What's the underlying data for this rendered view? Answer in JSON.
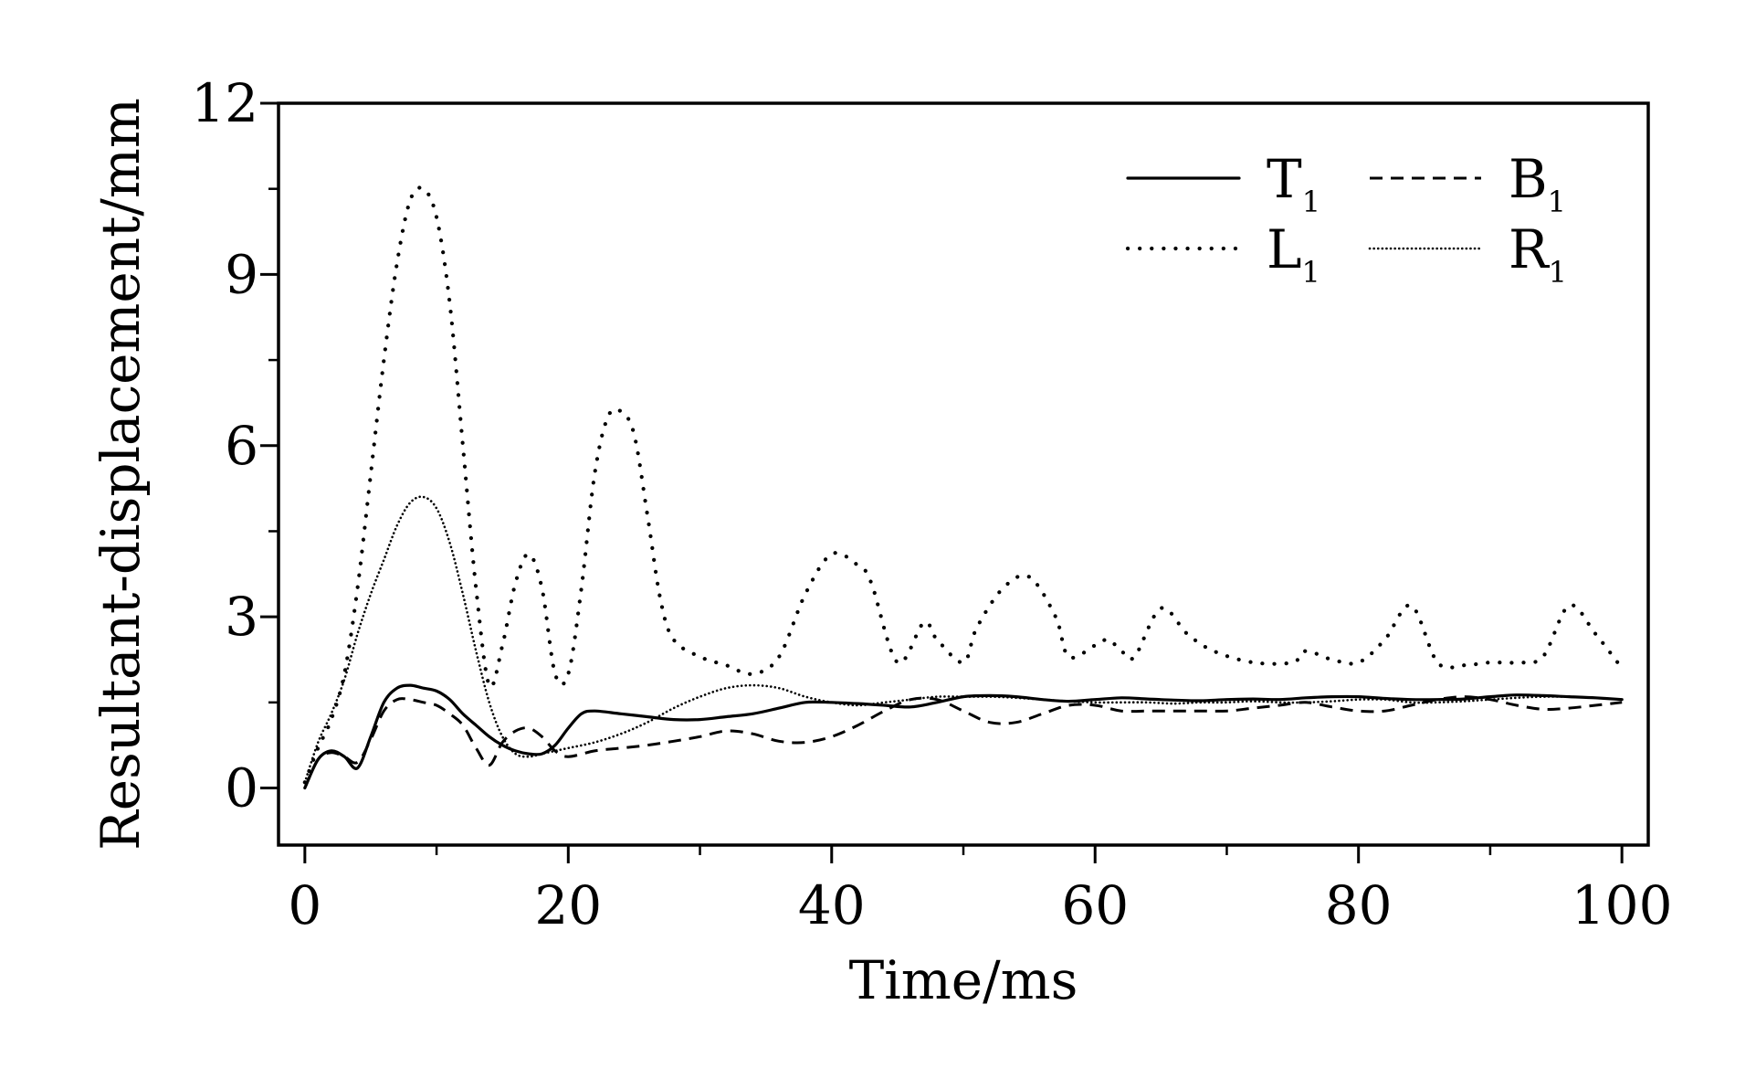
{
  "chart_data": {
    "type": "line",
    "title": "",
    "xlabel": "Time/ms",
    "ylabel": "Resultant-displacement/mm",
    "xlim": [
      -2,
      102
    ],
    "ylim": [
      -1,
      12
    ],
    "xticks": [
      0,
      20,
      40,
      60,
      80,
      100
    ],
    "xtick_labels": [
      "0",
      "20",
      "40",
      "60",
      "80",
      "100"
    ],
    "yticks": [
      0,
      3,
      6,
      9,
      12
    ],
    "ytick_labels": [
      "0",
      "3",
      "6",
      "9",
      "12"
    ],
    "x_minor_ticks": [
      10,
      30,
      50,
      70,
      90
    ],
    "y_minor_ticks": [
      1.5,
      4.5,
      7.5,
      10.5
    ],
    "grid": false,
    "legend_position": "top-right",
    "series": [
      {
        "name": "T",
        "subscript": "1",
        "line_style": "solid",
        "color": "#000000",
        "x": [
          0,
          1,
          2,
          3,
          4,
          5,
          6,
          7,
          8,
          9,
          10,
          11,
          12,
          13,
          14,
          15,
          16,
          17,
          18,
          19,
          20,
          21,
          22,
          24,
          26,
          28,
          30,
          32,
          34,
          36,
          38,
          40,
          42,
          44,
          46,
          48,
          50,
          52,
          54,
          56,
          58,
          60,
          62,
          64,
          66,
          68,
          70,
          72,
          74,
          76,
          78,
          80,
          82,
          84,
          86,
          88,
          90,
          92,
          94,
          96,
          98,
          100
        ],
        "y": [
          0,
          0.5,
          0.65,
          0.55,
          0.35,
          0.9,
          1.5,
          1.75,
          1.8,
          1.75,
          1.7,
          1.55,
          1.3,
          1.1,
          0.9,
          0.75,
          0.65,
          0.6,
          0.6,
          0.75,
          1.05,
          1.3,
          1.35,
          1.3,
          1.25,
          1.2,
          1.2,
          1.25,
          1.3,
          1.4,
          1.5,
          1.5,
          1.48,
          1.45,
          1.42,
          1.5,
          1.6,
          1.62,
          1.6,
          1.55,
          1.52,
          1.55,
          1.58,
          1.56,
          1.54,
          1.53,
          1.55,
          1.56,
          1.55,
          1.58,
          1.6,
          1.6,
          1.57,
          1.55,
          1.55,
          1.56,
          1.6,
          1.63,
          1.62,
          1.6,
          1.58,
          1.55
        ]
      },
      {
        "name": "B",
        "subscript": "1",
        "line_style": "dashed",
        "color": "#000000",
        "x": [
          0,
          1,
          2,
          3,
          4,
          5,
          6,
          7,
          8,
          9,
          10,
          11,
          12,
          13,
          14,
          15,
          16,
          17,
          18,
          19,
          20,
          22,
          24,
          26,
          28,
          30,
          32,
          34,
          36,
          38,
          40,
          42,
          44,
          46,
          48,
          50,
          52,
          54,
          56,
          58,
          60,
          62,
          64,
          66,
          68,
          70,
          72,
          74,
          76,
          78,
          80,
          82,
          84,
          86,
          88,
          90,
          92,
          94,
          96,
          98,
          100
        ],
        "y": [
          0,
          0.5,
          0.62,
          0.55,
          0.45,
          0.85,
          1.35,
          1.55,
          1.55,
          1.5,
          1.45,
          1.3,
          1.1,
          0.7,
          0.4,
          0.8,
          1.0,
          1.05,
          0.9,
          0.65,
          0.55,
          0.65,
          0.7,
          0.75,
          0.82,
          0.9,
          1.0,
          0.95,
          0.82,
          0.8,
          0.9,
          1.1,
          1.35,
          1.55,
          1.55,
          1.35,
          1.15,
          1.15,
          1.3,
          1.45,
          1.45,
          1.35,
          1.35,
          1.35,
          1.35,
          1.35,
          1.4,
          1.45,
          1.5,
          1.42,
          1.35,
          1.35,
          1.45,
          1.55,
          1.6,
          1.55,
          1.45,
          1.38,
          1.4,
          1.45,
          1.5
        ]
      },
      {
        "name": "L",
        "subscript": "1",
        "line_style": "dotted",
        "color": "#000000",
        "x": [
          0,
          1,
          2,
          3,
          4,
          5,
          6,
          7,
          8,
          9,
          10,
          11,
          12,
          13,
          14,
          15,
          16,
          17,
          18,
          19,
          20,
          21,
          22,
          23,
          24,
          25,
          26,
          27,
          28,
          30,
          32,
          34,
          36,
          38,
          40,
          42,
          43,
          45,
          47,
          48,
          50,
          51,
          53,
          55,
          57,
          58,
          60,
          61,
          62,
          63,
          65,
          67,
          69,
          72,
          75,
          76,
          78,
          80,
          82,
          84,
          86,
          88,
          90,
          92,
          94,
          96,
          98,
          100
        ],
        "y": [
          0.1,
          0.7,
          1.2,
          2.0,
          3.5,
          5.5,
          7.5,
          9.2,
          10.3,
          10.5,
          10.0,
          8.5,
          6.0,
          3.5,
          1.8,
          2.5,
          3.6,
          4.1,
          3.5,
          2.0,
          2.0,
          3.5,
          5.5,
          6.5,
          6.6,
          6.2,
          4.8,
          3.3,
          2.6,
          2.3,
          2.15,
          2.0,
          2.3,
          3.4,
          4.1,
          3.9,
          3.6,
          2.2,
          2.9,
          2.6,
          2.2,
          2.8,
          3.5,
          3.7,
          3.0,
          2.3,
          2.5,
          2.6,
          2.4,
          2.3,
          3.15,
          2.7,
          2.4,
          2.2,
          2.2,
          2.4,
          2.25,
          2.2,
          2.6,
          3.2,
          2.2,
          2.15,
          2.2,
          2.2,
          2.3,
          3.2,
          2.7,
          2.1
        ]
      },
      {
        "name": "R",
        "subscript": "1",
        "line_style": "fine-dotted",
        "color": "#000000",
        "x": [
          0,
          1,
          2,
          3,
          4,
          5,
          6,
          7,
          8,
          9,
          10,
          11,
          12,
          13,
          14,
          15,
          16,
          17,
          18,
          19,
          20,
          22,
          24,
          26,
          28,
          30,
          32,
          34,
          36,
          38,
          40,
          42,
          44,
          46,
          48,
          50,
          52,
          54,
          56,
          58,
          60,
          62,
          64,
          66,
          68,
          70,
          72,
          74,
          76,
          78,
          80,
          82,
          84,
          86,
          88,
          90,
          92,
          94,
          96,
          98,
          100
        ],
        "y": [
          0.1,
          0.8,
          1.3,
          1.9,
          2.7,
          3.4,
          4.0,
          4.6,
          5.0,
          5.1,
          4.9,
          4.3,
          3.4,
          2.4,
          1.5,
          0.9,
          0.6,
          0.55,
          0.6,
          0.65,
          0.7,
          0.8,
          0.95,
          1.15,
          1.4,
          1.6,
          1.75,
          1.8,
          1.75,
          1.6,
          1.5,
          1.45,
          1.5,
          1.55,
          1.6,
          1.6,
          1.6,
          1.58,
          1.55,
          1.52,
          1.5,
          1.5,
          1.5,
          1.48,
          1.5,
          1.5,
          1.52,
          1.5,
          1.5,
          1.52,
          1.55,
          1.55,
          1.5,
          1.5,
          1.52,
          1.55,
          1.58,
          1.6,
          1.6,
          1.58,
          1.55
        ]
      }
    ]
  }
}
